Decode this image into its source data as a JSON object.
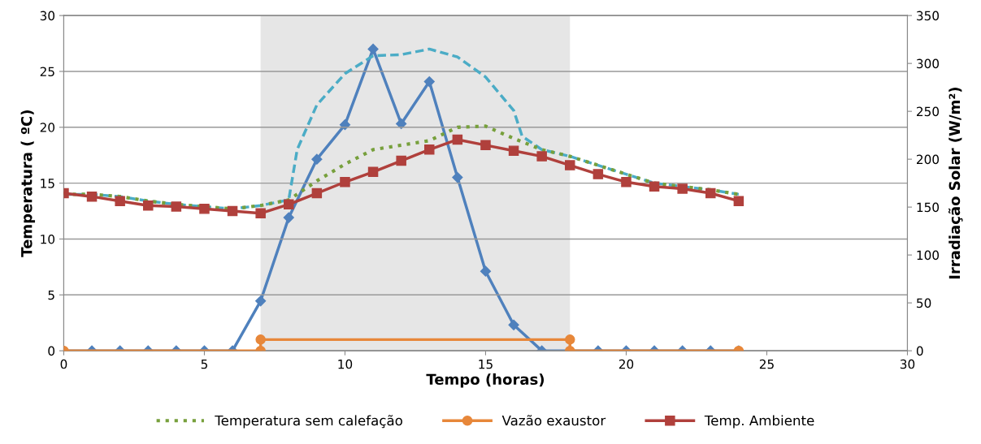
{
  "chart_data": {
    "type": "line",
    "xlabel": "Tempo (horas)",
    "ylabel": "Temperatura ( ºC)",
    "y2label": "Irradiação Solar (W/m²)",
    "xlim": [
      0,
      30
    ],
    "xticks": [
      0,
      5,
      10,
      15,
      20,
      25,
      30
    ],
    "ylim": [
      0,
      30
    ],
    "yticks": [
      0,
      5,
      10,
      15,
      20,
      25,
      30
    ],
    "y2lim": [
      0,
      350
    ],
    "y2ticks": [
      0,
      50,
      100,
      150,
      200,
      250,
      300,
      350
    ],
    "grid": "y",
    "legend": "bottom",
    "bands": [
      {
        "axis": "x",
        "from": 7,
        "to": 18,
        "label": null,
        "color": "#e6e6e6"
      }
    ],
    "series": [
      {
        "color": "#4f81bd",
        "marker": "diamond",
        "line_style": "solid",
        "axis": "y2",
        "x": [
          0,
          1,
          2,
          3,
          4,
          5,
          6,
          7,
          8,
          9,
          10,
          11,
          12,
          13,
          14,
          15,
          16,
          17,
          18,
          19,
          20,
          21,
          22,
          23,
          24
        ],
        "values": [
          0,
          0,
          0,
          0,
          0,
          0,
          0,
          52,
          139,
          200,
          236,
          315,
          237,
          281,
          181,
          83,
          27,
          0,
          0,
          0,
          0,
          0,
          0,
          0,
          0
        ]
      },
      {
        "color": "#4bacc6",
        "marker": "none",
        "line_style": "dashed",
        "x": [
          0,
          1,
          2,
          3,
          4,
          5,
          6,
          7,
          8,
          8.3,
          9,
          10,
          11,
          12,
          13,
          14,
          15,
          16,
          16.3,
          17,
          18,
          19,
          20,
          21,
          22,
          23,
          24
        ],
        "values": [
          14.0,
          14.0,
          13.8,
          13.4,
          13.1,
          12.9,
          12.7,
          13.0,
          13.5,
          18,
          22,
          24.8,
          26.4,
          26.5,
          27.0,
          26.3,
          24.5,
          21.5,
          19.2,
          18.0,
          17.4,
          16.6,
          15.8,
          15.0,
          14.7,
          14.4,
          14.0
        ]
      },
      {
        "name": "Temperatura sem calefação",
        "color": "#77a03c",
        "marker": "none",
        "line_style": "dotted",
        "x": [
          0,
          1,
          2,
          3,
          4,
          5,
          6,
          7,
          8,
          9,
          10,
          11,
          12,
          13,
          14,
          15,
          16,
          17,
          18,
          19,
          20,
          21,
          22,
          23,
          24
        ],
        "values": [
          14.0,
          14.0,
          13.8,
          13.4,
          13.1,
          12.9,
          12.7,
          13.0,
          13.5,
          15.2,
          16.7,
          18.0,
          18.4,
          18.8,
          20.0,
          20.1,
          19.0,
          18.0,
          17.4,
          16.6,
          15.8,
          15.0,
          14.7,
          14.4,
          14.0
        ]
      },
      {
        "name": "Vazão exaustor",
        "color": "#e7873a",
        "marker": "circle",
        "line_style": "solid",
        "x": [
          0,
          7,
          7,
          18,
          18,
          24
        ],
        "values": [
          0,
          0,
          1,
          1,
          0,
          0
        ]
      },
      {
        "name": "Temp. Ambiente",
        "color": "#b0403c",
        "marker": "square",
        "line_style": "solid",
        "x": [
          0,
          1,
          2,
          3,
          4,
          5,
          6,
          7,
          8,
          9,
          10,
          11,
          12,
          13,
          14,
          15,
          16,
          17,
          18,
          19,
          20,
          21,
          22,
          23,
          24
        ],
        "values": [
          14.1,
          13.8,
          13.4,
          13.0,
          12.9,
          12.7,
          12.5,
          12.3,
          13.1,
          14.1,
          15.1,
          16.0,
          17.0,
          18.0,
          18.9,
          18.4,
          17.9,
          17.4,
          16.6,
          15.8,
          15.1,
          14.7,
          14.5,
          14.1,
          13.4
        ]
      }
    ]
  }
}
